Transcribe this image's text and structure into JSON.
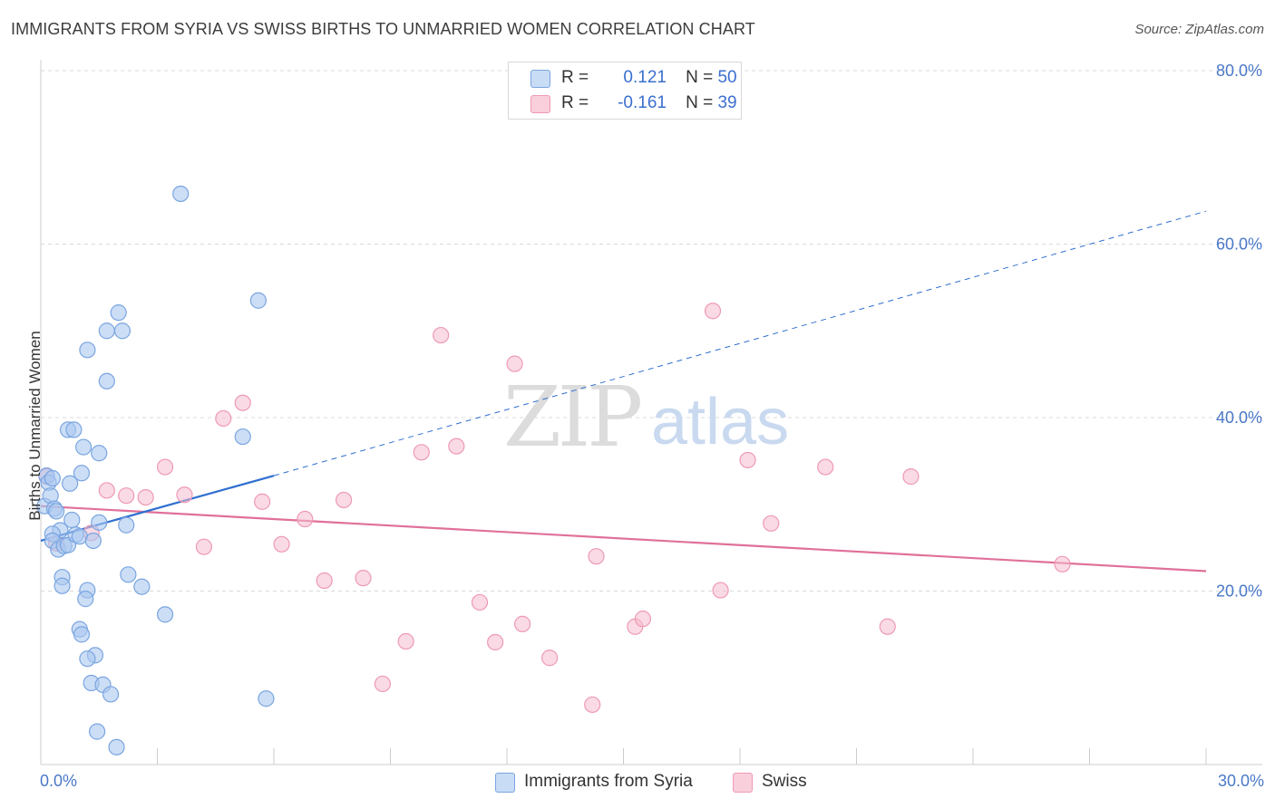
{
  "title": "IMMIGRANTS FROM SYRIA VS SWISS BIRTHS TO UNMARRIED WOMEN CORRELATION CHART",
  "source": "Source: ZipAtlas.com",
  "watermark": {
    "zip": "ZIP",
    "atlas": "atlas"
  },
  "legend": {
    "rows": [
      {
        "r_label": "R =",
        "r_value": "0.121",
        "n_label": "N =",
        "n_value": "50"
      },
      {
        "r_label": "R =",
        "r_value": "-0.161",
        "n_label": "N =",
        "n_value": "39"
      }
    ]
  },
  "colors": {
    "syria_fill": "#aac8f0",
    "syria_stroke": "#7aa5e0",
    "syria_line": "#2f6fd0",
    "swiss_fill": "#f6bccd",
    "swiss_stroke": "#ee9ab3",
    "swiss_line": "#e0709a",
    "grid": "#d9d9d9",
    "tick_label": "#4a78c8"
  },
  "chart_data": {
    "type": "scatter",
    "title": "IMMIGRANTS FROM SYRIA VS SWISS BIRTHS TO UNMARRIED WOMEN CORRELATION CHART",
    "xlabel": "",
    "ylabel": "Births to Unmarried Women",
    "xlim": [
      0,
      30
    ],
    "ylim": [
      0,
      80
    ],
    "x_tick_labels": {
      "min": "0.0%",
      "max": "30.0%"
    },
    "y_ticks": [
      20,
      40,
      60,
      80
    ],
    "y_tick_labels": [
      "20.0%",
      "40.0%",
      "60.0%",
      "80.0%"
    ],
    "x_minor_ticks": [
      3,
      6,
      9,
      12,
      15,
      18,
      21,
      24,
      27,
      30
    ],
    "series": [
      {
        "name": "Immigrants from Syria",
        "R": 0.121,
        "N": 50,
        "trend": {
          "x0": 0,
          "y0": 25.8,
          "x1": 6.0,
          "y1": 33.3,
          "dash_to_x": 30,
          "dash_to_y": 63.8
        },
        "points": [
          [
            0.15,
            33.3
          ],
          [
            0.2,
            32.5
          ],
          [
            0.1,
            29.8
          ],
          [
            0.25,
            31.0
          ],
          [
            0.35,
            29.5
          ],
          [
            0.4,
            29.2
          ],
          [
            0.5,
            27.0
          ],
          [
            0.3,
            26.6
          ],
          [
            0.3,
            25.8
          ],
          [
            0.45,
            24.8
          ],
          [
            0.6,
            25.2
          ],
          [
            0.7,
            25.3
          ],
          [
            0.8,
            28.2
          ],
          [
            0.9,
            26.5
          ],
          [
            1.0,
            26.3
          ],
          [
            0.55,
            21.6
          ],
          [
            0.55,
            20.6
          ],
          [
            0.7,
            38.6
          ],
          [
            0.85,
            38.6
          ],
          [
            0.75,
            32.4
          ],
          [
            1.05,
            33.6
          ],
          [
            1.1,
            36.6
          ],
          [
            1.5,
            35.9
          ],
          [
            1.2,
            47.8
          ],
          [
            1.7,
            50.0
          ],
          [
            2.0,
            52.1
          ],
          [
            2.1,
            50.0
          ],
          [
            1.7,
            44.2
          ],
          [
            1.35,
            25.8
          ],
          [
            1.5,
            27.9
          ],
          [
            2.2,
            27.6
          ],
          [
            1.2,
            20.1
          ],
          [
            1.15,
            19.1
          ],
          [
            2.25,
            21.9
          ],
          [
            2.6,
            20.5
          ],
          [
            3.2,
            17.3
          ],
          [
            1.0,
            15.6
          ],
          [
            1.05,
            15.0
          ],
          [
            1.4,
            12.6
          ],
          [
            1.2,
            12.2
          ],
          [
            1.3,
            9.4
          ],
          [
            1.6,
            9.2
          ],
          [
            1.8,
            8.1
          ],
          [
            1.45,
            3.8
          ],
          [
            1.95,
            2.0
          ],
          [
            3.6,
            65.8
          ],
          [
            5.6,
            53.5
          ],
          [
            5.2,
            37.8
          ],
          [
            5.8,
            7.6
          ],
          [
            0.3,
            33.0
          ]
        ]
      },
      {
        "name": "Swiss",
        "R": -0.161,
        "N": 39,
        "trend": {
          "x0": 0,
          "y0": 29.8,
          "x1": 30,
          "y1": 22.3
        },
        "points": [
          [
            0.15,
            33.2
          ],
          [
            1.3,
            26.7
          ],
          [
            1.7,
            31.6
          ],
          [
            2.2,
            31.0
          ],
          [
            2.7,
            30.8
          ],
          [
            3.2,
            34.3
          ],
          [
            3.7,
            31.1
          ],
          [
            4.2,
            25.1
          ],
          [
            4.7,
            39.9
          ],
          [
            5.2,
            41.7
          ],
          [
            5.7,
            30.3
          ],
          [
            6.2,
            25.4
          ],
          [
            6.8,
            28.3
          ],
          [
            7.3,
            21.2
          ],
          [
            7.8,
            30.5
          ],
          [
            8.3,
            21.5
          ],
          [
            8.8,
            9.3
          ],
          [
            9.4,
            14.2
          ],
          [
            9.8,
            36.0
          ],
          [
            10.3,
            49.5
          ],
          [
            10.7,
            36.7
          ],
          [
            11.3,
            18.7
          ],
          [
            11.7,
            14.1
          ],
          [
            12.2,
            46.2
          ],
          [
            12.4,
            16.2
          ],
          [
            13.1,
            12.3
          ],
          [
            14.3,
            24.0
          ],
          [
            14.2,
            6.9
          ],
          [
            15.3,
            15.9
          ],
          [
            15.5,
            16.8
          ],
          [
            17.3,
            52.3
          ],
          [
            17.5,
            20.1
          ],
          [
            18.2,
            35.1
          ],
          [
            18.8,
            27.8
          ],
          [
            20.2,
            34.3
          ],
          [
            21.8,
            15.9
          ],
          [
            22.4,
            33.2
          ],
          [
            26.3,
            23.1
          ],
          [
            0.4,
            25.5
          ]
        ]
      }
    ]
  },
  "bottom_legend": [
    "Immigrants from Syria",
    "Swiss"
  ]
}
